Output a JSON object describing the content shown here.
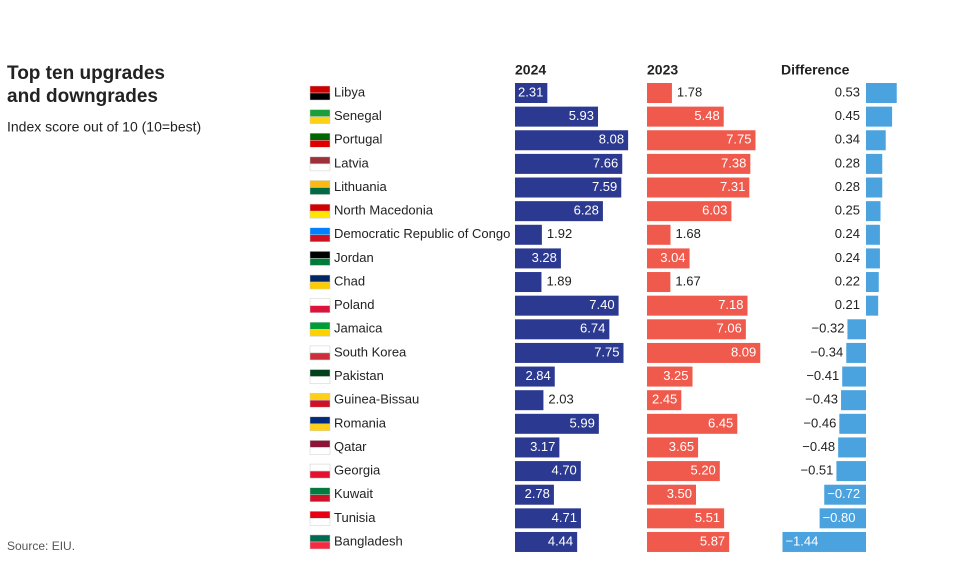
{
  "chart_data": {
    "type": "bar",
    "title": "Top ten upgrades and downgrades",
    "subtitle": "Index score out of 10 (10=best)",
    "source": "Source: EIU.",
    "categories": [
      "Libya",
      "Senegal",
      "Portugal",
      "Latvia",
      "Lithuania",
      "North Macedonia",
      "Democratic Republic of Congo",
      "Jordan",
      "Chad",
      "Poland",
      "Jamaica",
      "South Korea",
      "Pakistan",
      "Guinea-Bissau",
      "Romania",
      "Qatar",
      "Georgia",
      "Kuwait",
      "Tunisia",
      "Bangladesh"
    ],
    "series": [
      {
        "name": "2024",
        "color": "#2b3990",
        "values": [
          2.31,
          5.93,
          8.08,
          7.66,
          7.59,
          6.28,
          1.92,
          3.28,
          1.89,
          7.4,
          6.74,
          7.75,
          2.84,
          2.03,
          5.99,
          3.17,
          4.7,
          2.78,
          4.71,
          4.44
        ],
        "value_labels": [
          "2.31",
          "5.93",
          "8.08",
          "7.66",
          "7.59",
          "6.28",
          "1.92",
          "3.28",
          "1.89",
          "7.40",
          "6.74",
          "7.75",
          "2.84",
          "2.03",
          "5.99",
          "3.17",
          "4.70",
          "2.78",
          "4.71",
          "4.44"
        ]
      },
      {
        "name": "2023",
        "color": "#ef5a4c",
        "values": [
          1.78,
          5.48,
          7.75,
          7.38,
          7.31,
          6.03,
          1.68,
          3.04,
          1.67,
          7.18,
          7.06,
          8.09,
          3.25,
          2.45,
          6.45,
          3.65,
          5.2,
          3.5,
          5.51,
          5.87
        ],
        "value_labels": [
          "1.78",
          "5.48",
          "7.75",
          "7.38",
          "7.31",
          "6.03",
          "1.68",
          "3.04",
          "1.67",
          "7.18",
          "7.06",
          "8.09",
          "3.25",
          "2.45",
          "6.45",
          "3.65",
          "5.20",
          "3.50",
          "5.51",
          "5.87"
        ]
      },
      {
        "name": "Difference",
        "color": "#4aa3df",
        "values": [
          0.53,
          0.45,
          0.34,
          0.28,
          0.28,
          0.25,
          0.24,
          0.24,
          0.22,
          0.21,
          -0.32,
          -0.34,
          -0.41,
          -0.43,
          -0.46,
          -0.48,
          -0.51,
          -0.72,
          -0.8,
          -1.44
        ],
        "value_labels": [
          "0.53",
          "0.45",
          "0.34",
          "0.28",
          "0.28",
          "0.25",
          "0.24",
          "0.24",
          "0.22",
          "0.21",
          "−0.32",
          "−0.34",
          "−0.41",
          "−0.43",
          "−0.46",
          "−0.48",
          "−0.51",
          "−0.72",
          "−0.80",
          "−1.44"
        ]
      }
    ]
  }
}
